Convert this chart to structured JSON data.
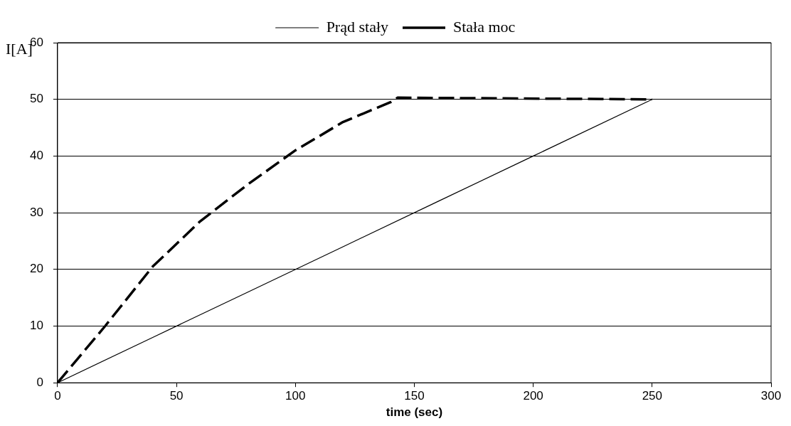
{
  "chart_data": {
    "type": "line",
    "xlabel": "time (sec)",
    "ylabel": "I[A]",
    "xlim": [
      0,
      300
    ],
    "xticks": [
      0,
      50,
      100,
      150,
      200,
      250,
      300
    ],
    "ylim": [
      0,
      60
    ],
    "yticks": [
      0,
      10,
      20,
      30,
      40,
      50,
      60
    ],
    "grid": "y",
    "legend": "top",
    "marker": "none",
    "series": [
      {
        "name": "Prąd stały",
        "color": "#000000",
        "line_style": "solid",
        "x": [
          0,
          40,
          80,
          120,
          160,
          200,
          250
        ],
        "values": [
          0,
          8,
          16,
          24,
          32,
          40,
          50
        ]
      },
      {
        "name": "Stała moc",
        "color": "#000000",
        "line_style": "dashed",
        "x": [
          0,
          20,
          40,
          60,
          80,
          100,
          120,
          140,
          143,
          250
        ],
        "values": [
          0,
          10,
          20.5,
          28.5,
          35,
          41,
          46,
          49.5,
          50.3,
          50
        ]
      }
    ]
  }
}
